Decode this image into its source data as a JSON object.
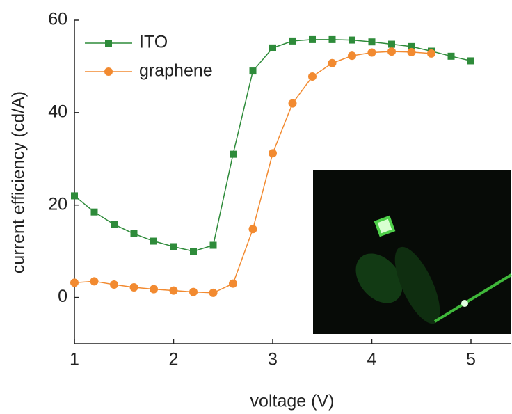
{
  "chart_data": {
    "type": "line",
    "x_label": "voltage (V)",
    "y_label": "current efficiency (cd/A)",
    "xlim": [
      1,
      5.4
    ],
    "ylim": [
      -10,
      60
    ],
    "xticks": [
      1,
      2,
      3,
      4,
      5
    ],
    "yticks": [
      0,
      20,
      40,
      60
    ],
    "legend": "top-left",
    "series": [
      {
        "name": "ITO",
        "color": "#2e8b3a",
        "marker": "square",
        "x": [
          1.0,
          1.2,
          1.4,
          1.6,
          1.8,
          2.0,
          2.2,
          2.4,
          2.6,
          2.8,
          3.0,
          3.2,
          3.4,
          3.6,
          3.8,
          4.0,
          4.2,
          4.4,
          4.6,
          4.8,
          5.0
        ],
        "values": [
          22,
          18.5,
          15.8,
          13.8,
          12.2,
          11,
          10,
          11.3,
          31,
          49,
          54,
          55.5,
          55.8,
          55.8,
          55.7,
          55.3,
          54.8,
          54.3,
          53.3,
          52.2,
          51.2
        ]
      },
      {
        "name": "graphene",
        "color": "#f28a30",
        "marker": "circle",
        "x": [
          1.0,
          1.2,
          1.4,
          1.6,
          1.8,
          2.0,
          2.2,
          2.4,
          2.6,
          2.8,
          3.0,
          3.2,
          3.4,
          3.6,
          3.8,
          4.0,
          4.2,
          4.4,
          4.6
        ],
        "values": [
          3.2,
          3.5,
          2.8,
          2.2,
          1.8,
          1.5,
          1.2,
          1.0,
          3.0,
          14.8,
          31.2,
          42,
          47.8,
          50.7,
          52.3,
          53,
          53.2,
          53.1,
          52.8
        ]
      }
    ]
  }
}
